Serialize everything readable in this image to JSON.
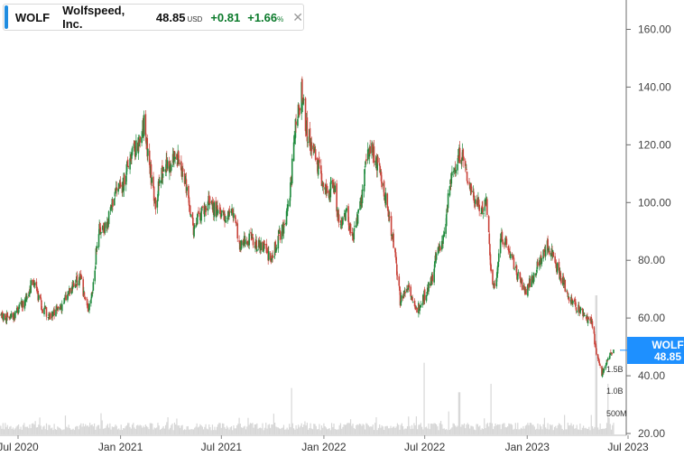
{
  "legend": {
    "symbol": "WOLF",
    "name": "Wolfspeed, Inc.",
    "price": "48.85",
    "currency": "USD",
    "change": "+0.81",
    "change_pct": "+1.66",
    "pct_symbol": "%",
    "close_icon": "close-icon"
  },
  "price_tag": {
    "symbol": "WOLF",
    "value": "48.85"
  },
  "colors": {
    "up": "#1e8a3c",
    "down": "#c9433a",
    "accent": "#1f8ce0",
    "tag": "#1e90ff",
    "volume": "#d7d7d7"
  },
  "chart_data": {
    "type": "candlestick",
    "title": "",
    "xlabel": "",
    "ylabel": "",
    "x_ticks": [
      "Jul 2020",
      "Jan 2021",
      "Jul 2021",
      "Jan 2022",
      "Jul 2022",
      "Jan 2023",
      "Jul 2023"
    ],
    "x_tick_dates": [
      "2020-07-01",
      "2021-01-01",
      "2021-07-01",
      "2022-01-01",
      "2022-07-01",
      "2023-01-01",
      "2023-07-01"
    ],
    "y_ticks": [
      "160.00",
      "140.00",
      "120.00",
      "100.00",
      "80.00",
      "60.00",
      "40.00",
      "20.00"
    ],
    "ylim": [
      20,
      165
    ],
    "volume_ticks": [
      "1.5B",
      "1.0B",
      "500M"
    ],
    "grid": false,
    "price_series": {
      "name": "WOLF",
      "points": [
        [
          "2020-05-13",
          56
        ],
        [
          "2020-06-01",
          61
        ],
        [
          "2020-06-20",
          60
        ],
        [
          "2020-07-10",
          65
        ],
        [
          "2020-07-28",
          73
        ],
        [
          "2020-08-12",
          64
        ],
        [
          "2020-08-28",
          60
        ],
        [
          "2020-09-15",
          64
        ],
        [
          "2020-10-05",
          70
        ],
        [
          "2020-10-20",
          74
        ],
        [
          "2020-11-03",
          63
        ],
        [
          "2020-11-12",
          70
        ],
        [
          "2020-11-22",
          90
        ],
        [
          "2020-12-08",
          93
        ],
        [
          "2020-12-22",
          104
        ],
        [
          "2021-01-05",
          106
        ],
        [
          "2021-01-20",
          117
        ],
        [
          "2021-02-05",
          120
        ],
        [
          "2021-02-12",
          128
        ],
        [
          "2021-02-25",
          109
        ],
        [
          "2021-03-05",
          100
        ],
        [
          "2021-03-15",
          110
        ],
        [
          "2021-03-29",
          113
        ],
        [
          "2021-04-10",
          118
        ],
        [
          "2021-04-20",
          110
        ],
        [
          "2021-05-01",
          105
        ],
        [
          "2021-05-12",
          90
        ],
        [
          "2021-05-26",
          97
        ],
        [
          "2021-06-10",
          100
        ],
        [
          "2021-06-22",
          97
        ],
        [
          "2021-07-05",
          94
        ],
        [
          "2021-07-15",
          97
        ],
        [
          "2021-07-25",
          96
        ],
        [
          "2021-08-03",
          84
        ],
        [
          "2021-08-15",
          88
        ],
        [
          "2021-08-30",
          86
        ],
        [
          "2021-09-15",
          84
        ],
        [
          "2021-09-28",
          80
        ],
        [
          "2021-10-12",
          88
        ],
        [
          "2021-10-25",
          93
        ],
        [
          "2021-11-03",
          107
        ],
        [
          "2021-11-12",
          130
        ],
        [
          "2021-11-22",
          138
        ],
        [
          "2021-12-01",
          125
        ],
        [
          "2021-12-15",
          117
        ],
        [
          "2022-01-05",
          103
        ],
        [
          "2022-01-20",
          106
        ],
        [
          "2022-01-28",
          92
        ],
        [
          "2022-02-10",
          97
        ],
        [
          "2022-02-22",
          87
        ],
        [
          "2022-03-08",
          99
        ],
        [
          "2022-03-22",
          120
        ],
        [
          "2022-04-05",
          115
        ],
        [
          "2022-04-18",
          105
        ],
        [
          "2022-05-05",
          88
        ],
        [
          "2022-05-18",
          66
        ],
        [
          "2022-06-03",
          72
        ],
        [
          "2022-06-14",
          62
        ],
        [
          "2022-06-28",
          67
        ],
        [
          "2022-07-12",
          72
        ],
        [
          "2022-07-25",
          84
        ],
        [
          "2022-08-05",
          88
        ],
        [
          "2022-08-15",
          106
        ],
        [
          "2022-08-25",
          113
        ],
        [
          "2022-09-05",
          118
        ],
        [
          "2022-09-15",
          109
        ],
        [
          "2022-09-28",
          102
        ],
        [
          "2022-10-10",
          97
        ],
        [
          "2022-10-20",
          101
        ],
        [
          "2022-10-28",
          75
        ],
        [
          "2022-11-05",
          70
        ],
        [
          "2022-11-15",
          89
        ],
        [
          "2022-11-28",
          84
        ],
        [
          "2022-12-12",
          76
        ],
        [
          "2022-12-28",
          69
        ],
        [
          "2023-01-10",
          74
        ],
        [
          "2023-01-25",
          80
        ],
        [
          "2023-02-05",
          85
        ],
        [
          "2023-02-15",
          83
        ],
        [
          "2023-03-01",
          75
        ],
        [
          "2023-03-20",
          66
        ],
        [
          "2023-04-10",
          62
        ],
        [
          "2023-04-28",
          58
        ],
        [
          "2023-05-05",
          47
        ],
        [
          "2023-05-15",
          41
        ],
        [
          "2023-05-26",
          46
        ],
        [
          "2023-06-05",
          48.85
        ]
      ]
    }
  }
}
